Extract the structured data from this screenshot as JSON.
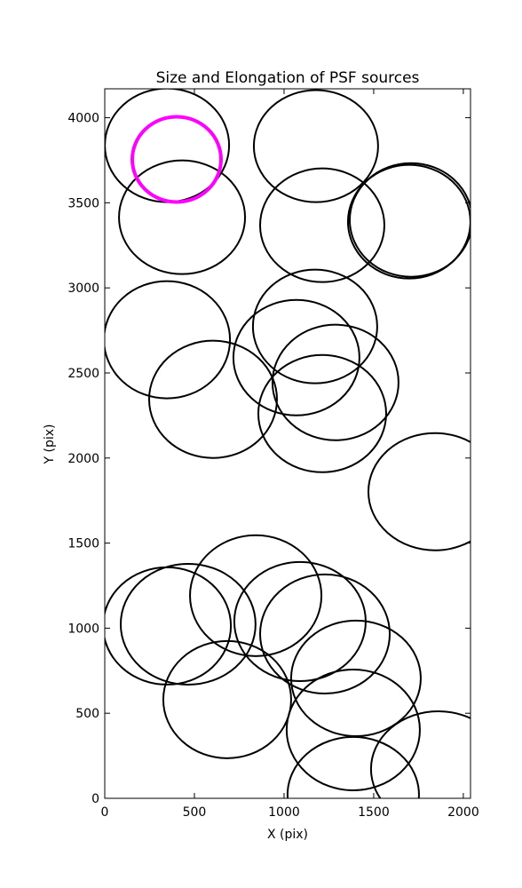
{
  "chart_data": {
    "type": "ellipse",
    "title": "Size and Elongation of PSF sources",
    "xlabel": "X (pix)",
    "ylabel": "Y (pix)",
    "xlim": [
      0,
      2040
    ],
    "ylim": [
      0,
      4170
    ],
    "xticks": [
      0,
      500,
      1000,
      1500,
      2000
    ],
    "yticks": [
      0,
      500,
      1000,
      1500,
      2000,
      2500,
      3000,
      3500,
      4000
    ],
    "ellipses": {
      "color": "#000000",
      "x": [
        347,
        1178,
        431,
        1213,
        1708,
        1698,
        347,
        1173,
        604,
        1069,
        1287,
        1213,
        1842,
        347,
        465,
        842,
        1089,
        1228,
        1401,
        683,
        1386,
        1861,
        1386
      ],
      "y": [
        3838,
        3833,
        3415,
        3368,
        3399,
        3389,
        2695,
        2773,
        2345,
        2590,
        2444,
        2261,
        1802,
        1013,
        1023,
        1191,
        1039,
        966,
        705,
        580,
        402,
        172,
        21
      ],
      "width": [
        693,
        693,
        703,
        693,
        683,
        683,
        703,
        693,
        713,
        703,
        703,
        713,
        743,
        713,
        752,
        733,
        733,
        723,
        723,
        713,
        743,
        752,
        733
      ],
      "height": [
        668,
        658,
        668,
        668,
        668,
        668,
        689,
        668,
        689,
        679,
        679,
        689,
        689,
        689,
        710,
        710,
        700,
        700,
        679,
        689,
        710,
        679,
        679
      ]
    },
    "highlight": {
      "color": "#ff00ff",
      "x": 401,
      "y": 3755,
      "width": 495,
      "height": 501
    }
  }
}
